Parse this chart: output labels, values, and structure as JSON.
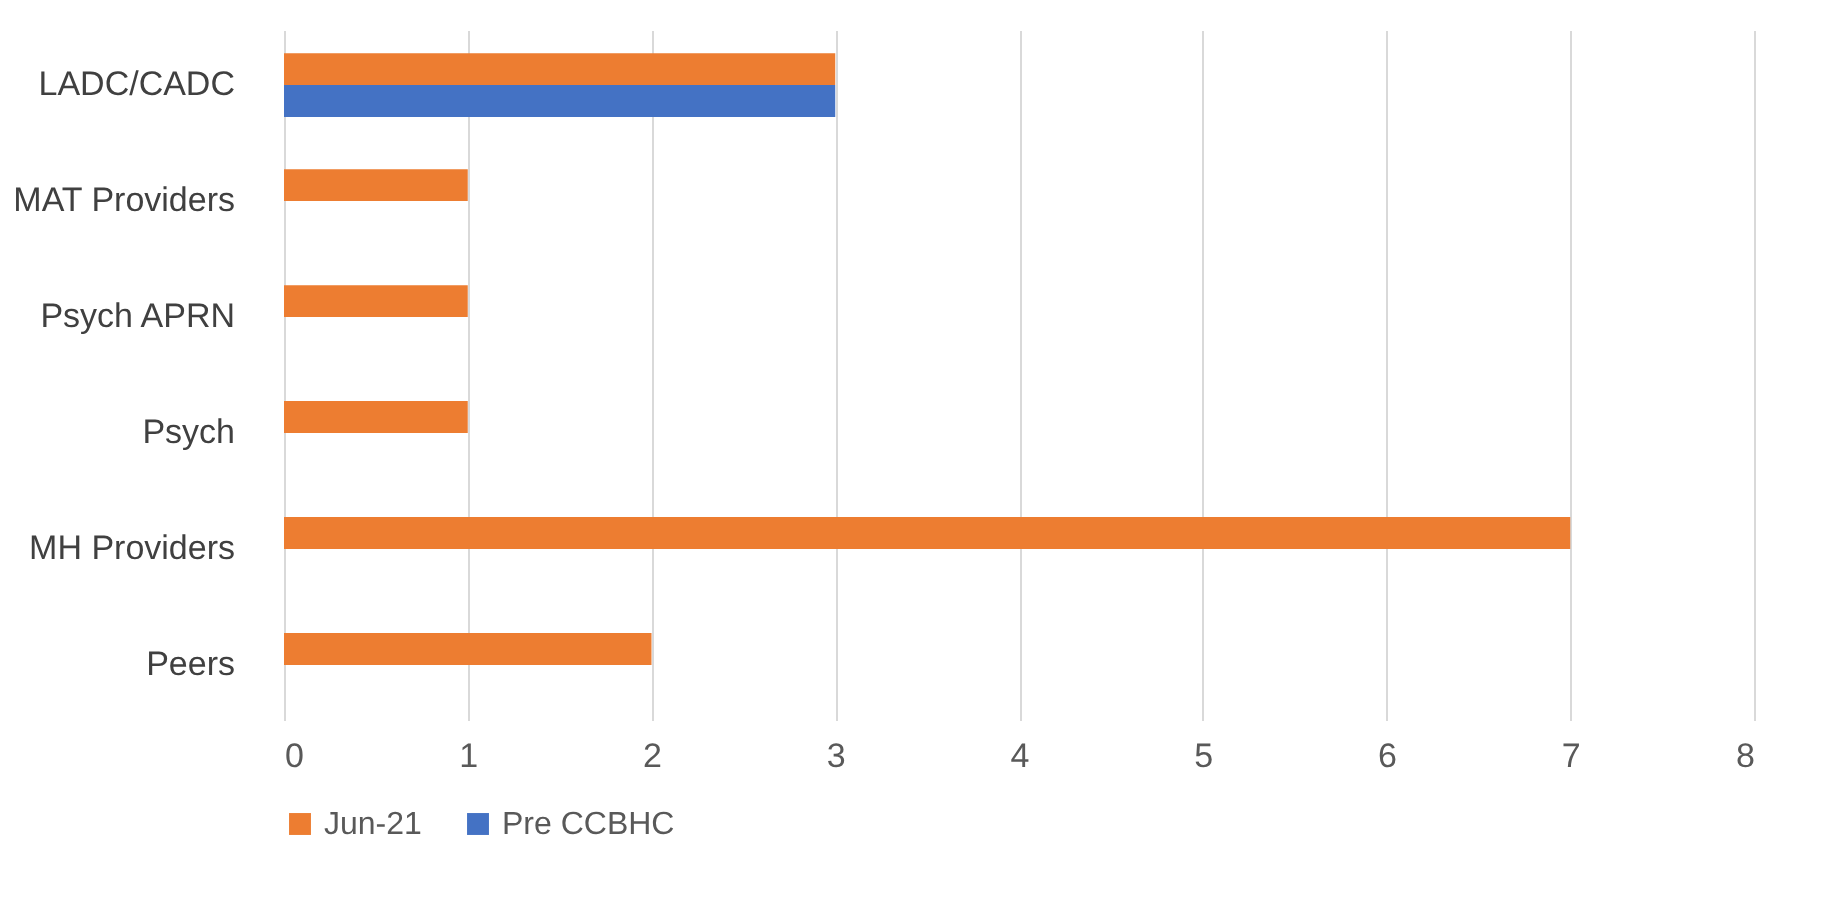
{
  "chart_data": {
    "type": "bar",
    "orientation": "horizontal",
    "categories": [
      "LADC/CADC",
      "MAT Providers",
      "Psych APRN",
      "Psych",
      "MH Providers",
      "Peers"
    ],
    "series": [
      {
        "name": "Jun-21",
        "color": "#ed7d31",
        "values": [
          3,
          1,
          1,
          1,
          7,
          2
        ]
      },
      {
        "name": "Pre CCBHC",
        "color": "#4472c4",
        "values": [
          3,
          0,
          0,
          0,
          0,
          0
        ]
      }
    ],
    "xlim": [
      0,
      8
    ],
    "xticks": [
      0,
      1,
      2,
      3,
      4,
      5,
      6,
      7,
      8
    ],
    "grid": "x",
    "legend": "bottom"
  }
}
